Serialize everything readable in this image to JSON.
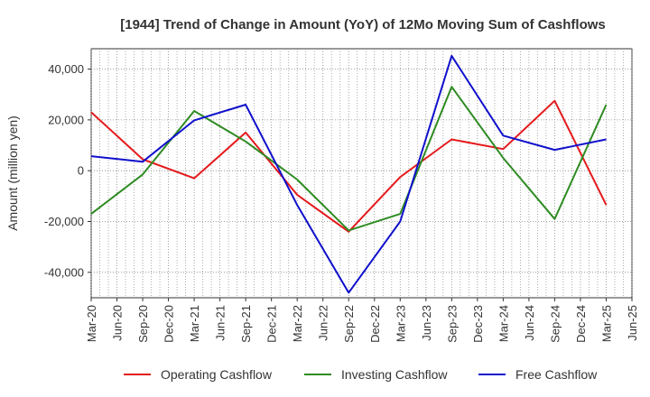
{
  "chart_data": {
    "type": "line",
    "title": "[1944]  Trend of Change in Amount (YoY) of 12Mo Moving Sum of Cashflows",
    "xlabel": "",
    "ylabel": "Amount (million yen)",
    "categories": [
      "Mar-20",
      "Jun-20",
      "Sep-20",
      "Dec-20",
      "Mar-21",
      "Jun-21",
      "Sep-21",
      "Dec-21",
      "Mar-22",
      "Jun-22",
      "Sep-22",
      "Dec-22",
      "Mar-23",
      "Jun-23",
      "Sep-23",
      "Dec-23",
      "Mar-24",
      "Jun-24",
      "Sep-24",
      "Dec-24",
      "Mar-25",
      "Jun-25"
    ],
    "yticks": [
      -40000,
      -20000,
      0,
      20000,
      40000
    ],
    "ytick_labels": [
      "-40,000",
      "-20,000",
      "0",
      "20,000",
      "40,000"
    ],
    "ylim": [
      -50000,
      48000
    ],
    "grid": true,
    "legend_position": "bottom",
    "series": [
      {
        "name": "Operating Cashflow",
        "color": "#e41a1c",
        "values": [
          23000,
          null,
          4500,
          null,
          -3000,
          null,
          15000,
          null,
          -9500,
          null,
          -24000,
          null,
          -2500,
          null,
          12300,
          null,
          8500,
          null,
          27500,
          null,
          -13500,
          null
        ]
      },
      {
        "name": "Investing Cashflow",
        "color": "#2e8b22",
        "values": [
          -17000,
          null,
          -1500,
          null,
          23500,
          null,
          11500,
          null,
          -3500,
          null,
          -23500,
          null,
          -17000,
          null,
          33000,
          null,
          5000,
          null,
          -19000,
          null,
          26000,
          null
        ]
      },
      {
        "name": "Free Cashflow",
        "color": "#1010cc",
        "values": [
          5700,
          null,
          3500,
          null,
          19800,
          null,
          26000,
          null,
          -13500,
          null,
          -48000,
          null,
          -20000,
          null,
          45200,
          null,
          13800,
          null,
          8200,
          null,
          12300,
          null
        ]
      }
    ]
  }
}
